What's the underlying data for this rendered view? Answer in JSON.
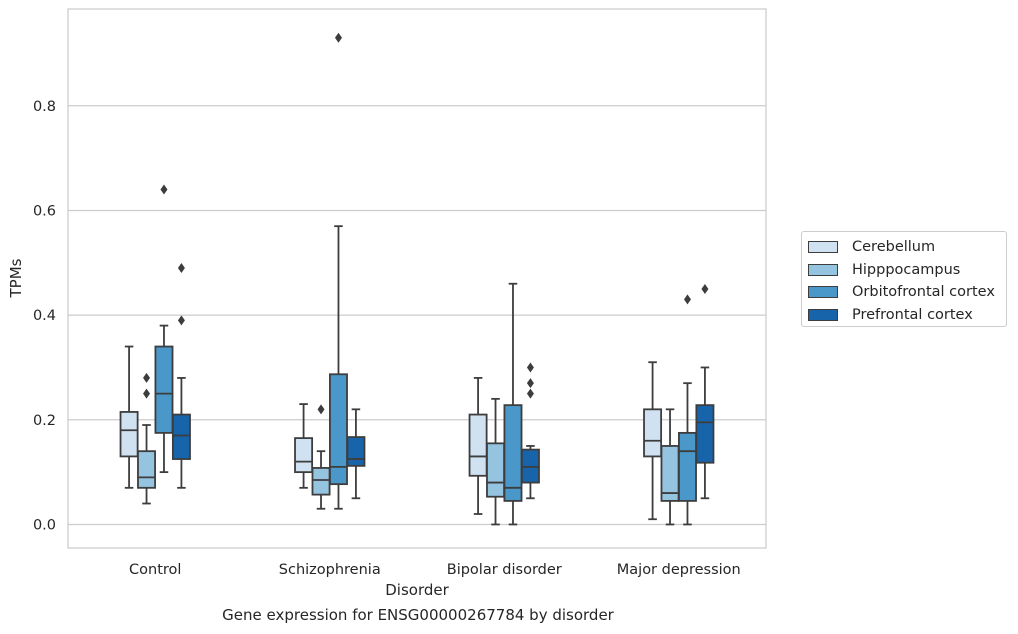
{
  "caption": "Gene expression for ENSG00000267784 by disorder",
  "chart_data": {
    "type": "box",
    "xlabel": "Disorder",
    "ylabel": "TPMs",
    "ylim": [
      -0.045,
      0.985
    ],
    "yticks": [
      0.0,
      0.2,
      0.4,
      0.6,
      0.8
    ],
    "ytick_labels": [
      "0.0",
      "0.2",
      "0.4",
      "0.6",
      "0.8"
    ],
    "grid": "horizontal",
    "legend_position": "right",
    "categories": [
      "Control",
      "Schizophrenia",
      "Bipolar disorder",
      "Major depression"
    ],
    "series": [
      {
        "name": "Cerebellum",
        "color": "#d0e1f2",
        "boxes": [
          {
            "whislo": 0.07,
            "q1": 0.13,
            "med": 0.18,
            "q3": 0.215,
            "whishi": 0.34,
            "fliers": []
          },
          {
            "whislo": 0.07,
            "q1": 0.1,
            "med": 0.12,
            "q3": 0.165,
            "whishi": 0.23,
            "fliers": []
          },
          {
            "whislo": 0.02,
            "q1": 0.093,
            "med": 0.13,
            "q3": 0.21,
            "whishi": 0.28,
            "fliers": []
          },
          {
            "whislo": 0.01,
            "q1": 0.13,
            "med": 0.16,
            "q3": 0.22,
            "whishi": 0.31,
            "fliers": []
          }
        ]
      },
      {
        "name": "Hipppocampus",
        "color": "#94c4df",
        "boxes": [
          {
            "whislo": 0.04,
            "q1": 0.07,
            "med": 0.09,
            "q3": 0.14,
            "whishi": 0.19,
            "fliers": [
              0.25,
              0.28
            ]
          },
          {
            "whislo": 0.03,
            "q1": 0.057,
            "med": 0.085,
            "q3": 0.108,
            "whishi": 0.14,
            "fliers": [
              0.22
            ]
          },
          {
            "whislo": 0.0,
            "q1": 0.053,
            "med": 0.08,
            "q3": 0.155,
            "whishi": 0.24,
            "fliers": []
          },
          {
            "whislo": 0.0,
            "q1": 0.045,
            "med": 0.06,
            "q3": 0.15,
            "whishi": 0.22,
            "fliers": []
          }
        ]
      },
      {
        "name": "Orbitofrontal cortex",
        "color": "#4a98c9",
        "boxes": [
          {
            "whislo": 0.1,
            "q1": 0.175,
            "med": 0.25,
            "q3": 0.34,
            "whishi": 0.38,
            "fliers": [
              0.64
            ]
          },
          {
            "whislo": 0.03,
            "q1": 0.077,
            "med": 0.11,
            "q3": 0.287,
            "whishi": 0.57,
            "fliers": [
              0.93
            ]
          },
          {
            "whislo": 0.0,
            "q1": 0.045,
            "med": 0.07,
            "q3": 0.228,
            "whishi": 0.46,
            "fliers": []
          },
          {
            "whislo": 0.0,
            "q1": 0.045,
            "med": 0.14,
            "q3": 0.175,
            "whishi": 0.27,
            "fliers": [
              0.43
            ]
          }
        ]
      },
      {
        "name": "Prefrontal cortex",
        "color": "#1764ab",
        "boxes": [
          {
            "whislo": 0.07,
            "q1": 0.125,
            "med": 0.17,
            "q3": 0.21,
            "whishi": 0.28,
            "fliers": [
              0.39,
              0.49
            ]
          },
          {
            "whislo": 0.05,
            "q1": 0.112,
            "med": 0.125,
            "q3": 0.167,
            "whishi": 0.22,
            "fliers": []
          },
          {
            "whislo": 0.05,
            "q1": 0.08,
            "med": 0.11,
            "q3": 0.143,
            "whishi": 0.15,
            "fliers": [
              0.25,
              0.27,
              0.3
            ]
          },
          {
            "whislo": 0.05,
            "q1": 0.118,
            "med": 0.195,
            "q3": 0.228,
            "whishi": 0.3,
            "fliers": [
              0.45
            ]
          }
        ]
      }
    ]
  }
}
